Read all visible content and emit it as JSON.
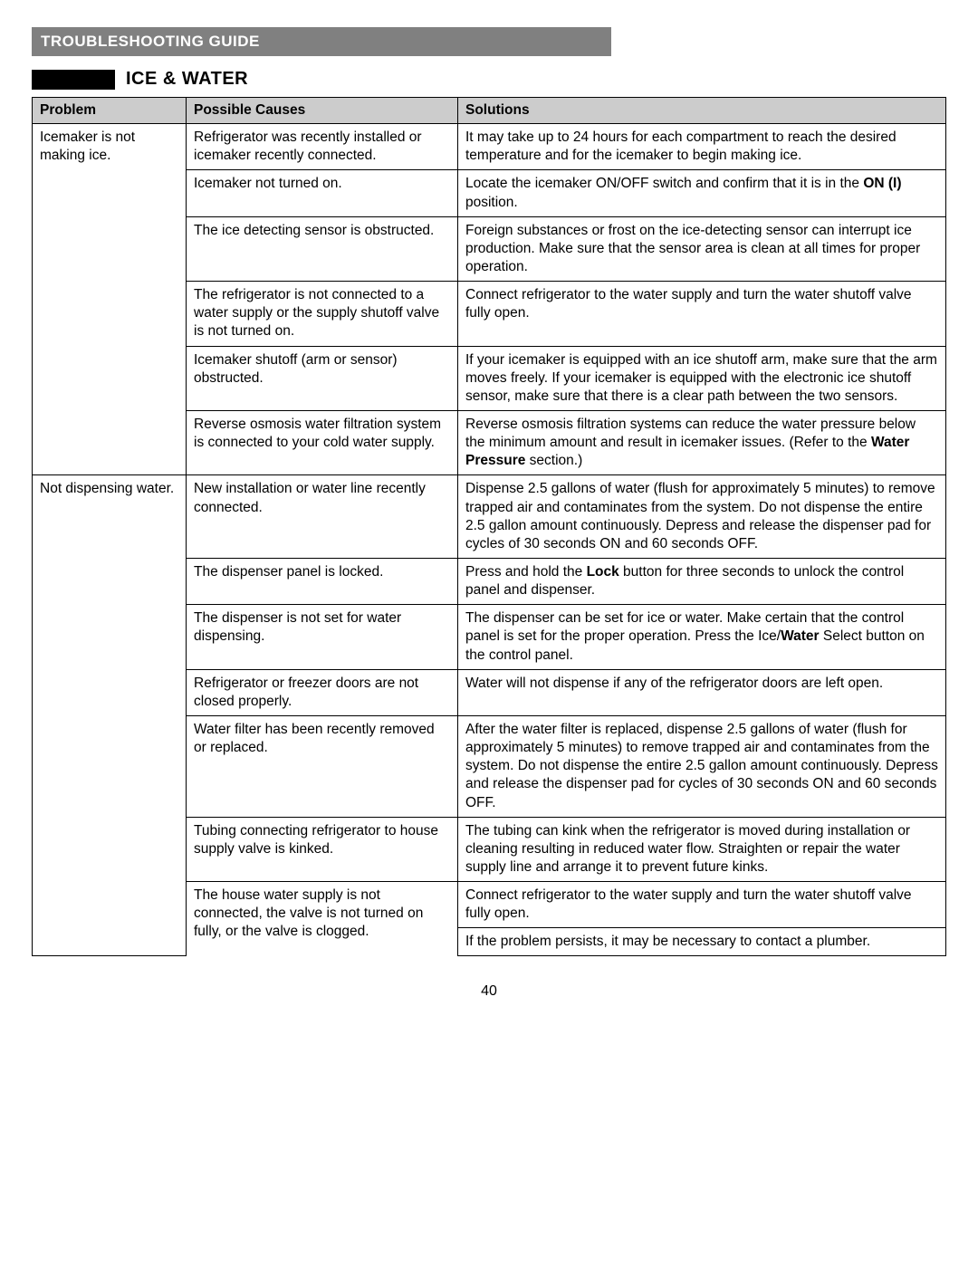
{
  "header": "TROUBLESHOOTING GUIDE",
  "section_title": "ICE & WATER",
  "columns": {
    "problem": "Problem",
    "causes": "Possible Causes",
    "solutions": "Solutions"
  },
  "rows": [
    {
      "problem": "Icemaker is not making ice.",
      "cause": "Refrigerator was recently installed or icemaker recently connected.",
      "solution": "It may take up to 24 hours for each compartment to reach the desired temperature and for the icemaker to begin making ice."
    },
    {
      "cause": "Icemaker not turned on.",
      "solution_html": "Locate the icemaker ON/OFF switch and confirm that it is in the <b>ON (I)</b> position."
    },
    {
      "cause": "The ice detecting sensor is obstructed.",
      "solution": "Foreign substances or frost on the ice-detecting sensor can interrupt ice production. Make sure that the sensor area is clean at all times for proper operation."
    },
    {
      "cause": "The refrigerator is not connected to a water supply or the supply shutoff valve is not turned on.",
      "solution": "Connect refrigerator to the water supply and turn the water shutoff valve fully open."
    },
    {
      "cause": "Icemaker shutoff (arm or sensor) obstructed.",
      "solution": "If your icemaker is equipped with an ice shutoff arm, make sure that the arm moves freely. If your icemaker is equipped with the electronic ice shutoff sensor, make sure that there is a clear path between the two sensors."
    },
    {
      "cause": "Reverse osmosis water filtration system is connected to your cold water supply.",
      "solution_html": "Reverse osmosis filtration systems can reduce the water pressure below the minimum amount and result in icemaker issues. (Refer to the <b>Water Pressure</b> section.)"
    },
    {
      "problem": "Not dispensing water.",
      "cause": "New installation or water line recently connected.",
      "solution": "Dispense 2.5 gallons of water (flush for approximately 5 minutes) to remove trapped air and contaminates from the system. Do not dispense the entire 2.5 gallon amount continuously. Depress and release the dispenser pad for cycles of 30 seconds ON and 60 seconds OFF."
    },
    {
      "cause": "The dispenser panel is locked.",
      "solution_html": "Press and hold the <b>Lock</b> button for three seconds to unlock the control panel and dispenser."
    },
    {
      "cause": "The dispenser is not set for water dispensing.",
      "solution_html": "The dispenser can be set for ice or water. Make certain that the control panel is set for the proper operation. Press the Ice/<b>Water</b> Select button on the control panel."
    },
    {
      "cause": "Refrigerator or freezer doors are not closed properly.",
      "solution": "Water will not dispense if any of the refrigerator doors are left open."
    },
    {
      "cause": "Water filter has been recently removed or replaced.",
      "solution": "After the water filter is replaced, dispense 2.5 gallons of water (flush for approximately 5 minutes) to remove trapped air and contaminates from the system. Do not dispense the entire 2.5 gallon amount continuously. Depress and release the dispenser pad for cycles of 30 seconds ON and 60 seconds OFF."
    },
    {
      "cause": "Tubing connecting refrigerator to house supply valve is kinked.",
      "solution": "The tubing can kink when the refrigerator is moved during installation or cleaning resulting in reduced water flow. Straighten or repair the water supply line and arrange it to prevent future kinks."
    },
    {
      "cause_rowspan": 2,
      "cause": "The house water supply is not connected, the valve is not turned on fully, or the valve is clogged.",
      "solution": "Connect refrigerator to the water supply and turn the water shutoff valve fully open."
    },
    {
      "solution": "If the problem persists, it may be necessary to contact a plumber."
    }
  ],
  "page_number": "40",
  "colors": {
    "header_bg": "#808080",
    "th_bg": "#cccccc",
    "border": "#000000",
    "text": "#000000",
    "bg": "#ffffff"
  }
}
